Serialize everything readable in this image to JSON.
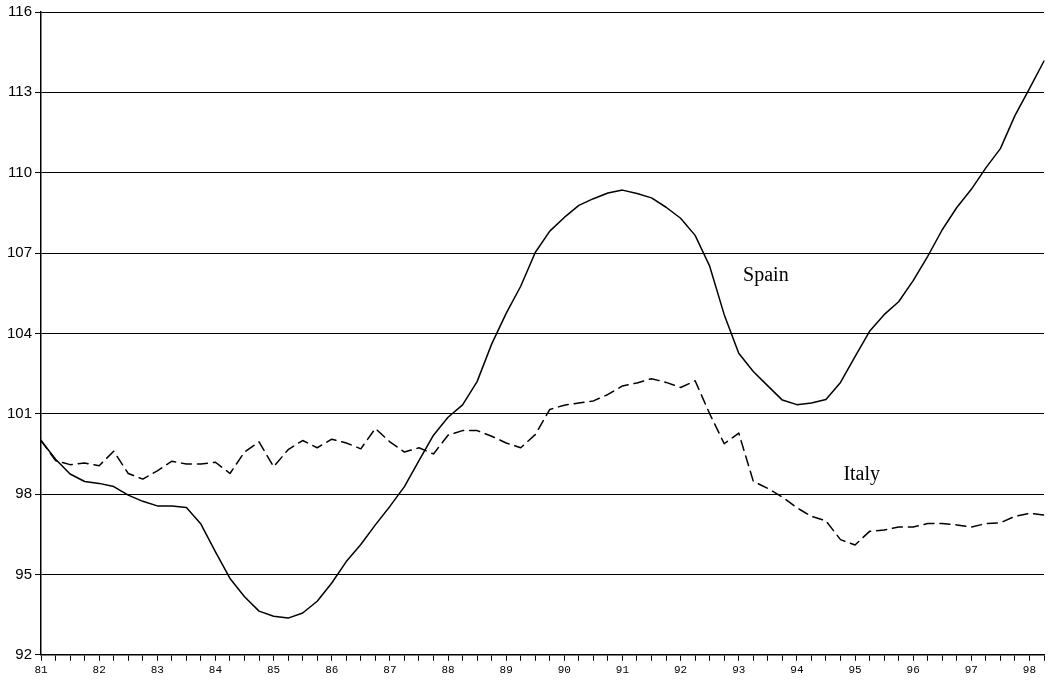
{
  "chart_data": {
    "type": "line",
    "categories": [
      "81",
      null,
      null,
      null,
      "82",
      null,
      null,
      null,
      "83",
      null,
      null,
      null,
      "84",
      null,
      null,
      null,
      "85",
      null,
      null,
      null,
      "86",
      null,
      null,
      null,
      "87",
      null,
      null,
      null,
      "88",
      null,
      null,
      null,
      "89",
      null,
      null,
      null,
      "90",
      null,
      null,
      null,
      "91",
      null,
      null,
      null,
      "92",
      null,
      null,
      null,
      "93",
      null,
      null,
      null,
      "94",
      null,
      null,
      null,
      "95",
      null,
      null,
      null,
      "96",
      null,
      null,
      null,
      "97",
      null,
      null,
      null,
      "98",
      null
    ],
    "series": [
      {
        "name": "Spain",
        "color": "#000000",
        "line_style": "solid",
        "values": [
          100.0,
          99.3,
          98.75,
          98.47,
          98.4,
          98.28,
          97.96,
          97.73,
          97.56,
          97.56,
          97.5,
          96.88,
          95.84,
          94.85,
          94.17,
          93.63,
          93.44,
          93.37,
          93.56,
          94.0,
          94.68,
          95.48,
          96.12,
          96.85,
          97.54,
          98.28,
          99.25,
          100.2,
          100.87,
          101.33,
          102.2,
          103.6,
          104.75,
          105.76,
          107.02,
          107.82,
          108.33,
          108.78,
          109.03,
          109.24,
          109.35,
          109.22,
          109.06,
          108.71,
          108.3,
          107.66,
          106.51,
          104.7,
          103.26,
          102.58,
          102.04,
          101.51,
          101.34,
          101.4,
          101.53,
          102.17,
          103.13,
          104.08,
          104.7,
          105.18,
          105.97,
          106.88,
          107.87,
          108.7,
          109.38,
          110.18,
          110.9,
          112.13,
          113.14,
          114.17
        ]
      },
      {
        "name": "Italy",
        "color": "#000000",
        "line_style": "dashed",
        "values": [
          100.0,
          99.25,
          99.1,
          99.16,
          99.06,
          99.6,
          98.77,
          98.56,
          98.87,
          99.23,
          99.12,
          99.12,
          99.19,
          98.77,
          99.57,
          99.95,
          99.02,
          99.66,
          100.0,
          99.73,
          100.05,
          99.91,
          99.69,
          100.45,
          99.95,
          99.57,
          99.73,
          99.5,
          100.2,
          100.37,
          100.37,
          100.16,
          99.91,
          99.73,
          100.22,
          101.16,
          101.32,
          101.4,
          101.48,
          101.72,
          102.04,
          102.15,
          102.31,
          102.17,
          101.98,
          102.23,
          101.0,
          99.88,
          100.28,
          98.48,
          98.21,
          97.89,
          97.49,
          97.17,
          97.0,
          96.3,
          96.1,
          96.61,
          96.66,
          96.77,
          96.77,
          96.9,
          96.9,
          96.85,
          96.77,
          96.9,
          96.93,
          97.17,
          97.28,
          97.22
        ]
      }
    ],
    "ylim": [
      92,
      116
    ],
    "yticks": [
      92,
      95,
      98,
      101,
      104,
      107,
      110,
      113,
      116
    ],
    "grid": "y",
    "legend": false,
    "marker": "none"
  }
}
